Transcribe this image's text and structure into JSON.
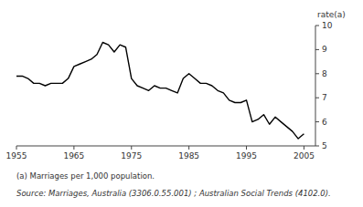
{
  "chart_data": {
    "type": "line",
    "ylabel": "rate(a)",
    "footnote": "(a) Marriages per 1,000 population.",
    "source": "Source: Marriages, Australia (3306.0.55.001) ; Australian Social Trends (4102.0).",
    "x": [
      1955,
      1956,
      1957,
      1958,
      1959,
      1960,
      1961,
      1962,
      1963,
      1964,
      1965,
      1966,
      1967,
      1968,
      1969,
      1970,
      1971,
      1972,
      1973,
      1974,
      1975,
      1976,
      1977,
      1978,
      1979,
      1980,
      1981,
      1982,
      1983,
      1984,
      1985,
      1986,
      1987,
      1988,
      1989,
      1990,
      1991,
      1992,
      1993,
      1994,
      1995,
      1996,
      1997,
      1998,
      1999,
      2000,
      2001,
      2002,
      2003,
      2004,
      2005
    ],
    "values": [
      7.9,
      7.9,
      7.8,
      7.6,
      7.6,
      7.5,
      7.6,
      7.6,
      7.6,
      7.8,
      8.3,
      8.4,
      8.5,
      8.6,
      8.8,
      9.3,
      9.2,
      8.9,
      9.2,
      9.1,
      7.8,
      7.5,
      7.4,
      7.3,
      7.5,
      7.4,
      7.4,
      7.3,
      7.2,
      7.8,
      8.0,
      7.8,
      7.6,
      7.6,
      7.5,
      7.3,
      7.2,
      6.9,
      6.8,
      6.8,
      6.9,
      6.0,
      6.1,
      6.3,
      5.9,
      6.2,
      6.0,
      5.8,
      5.6,
      5.3,
      5.5
    ],
    "color": "#000000",
    "xlim": [
      1955,
      2007
    ],
    "ylim": [
      5,
      10
    ],
    "xticks": [
      1955,
      1965,
      1975,
      1985,
      1995,
      2005
    ],
    "yticks": [
      5,
      6,
      7,
      8,
      9,
      10
    ],
    "grid": false
  }
}
